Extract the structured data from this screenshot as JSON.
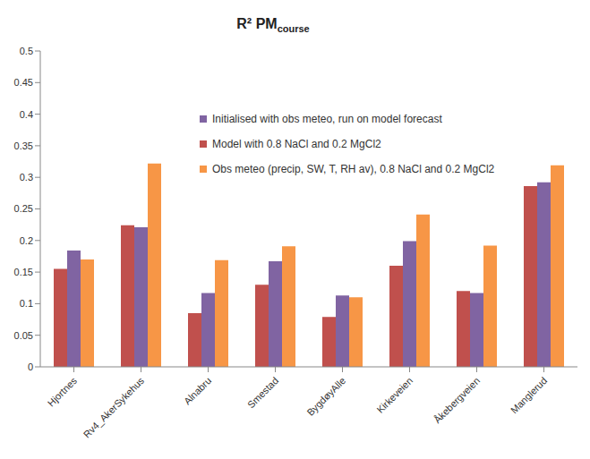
{
  "chart_data": {
    "type": "bar",
    "title": "R² PM",
    "title_subscript": "course",
    "categories": [
      "Hjortnes",
      "Rv4_AkerSykehus",
      "Alnabru",
      "Smestad",
      "BygdøyAlle",
      "Kirkeveien",
      "Åkebergveien",
      "Manglerud"
    ],
    "series": [
      {
        "name": "Model with 0.8 NaCl and 0.2 MgCl2",
        "color": "#C0504D",
        "values": [
          0.155,
          0.224,
          0.085,
          0.13,
          0.079,
          0.16,
          0.12,
          0.286
        ]
      },
      {
        "name": "Initialised with obs meteo, run on model forecast",
        "color": "#8064A2",
        "values": [
          0.184,
          0.221,
          0.117,
          0.167,
          0.113,
          0.199,
          0.117,
          0.292
        ]
      },
      {
        "name": "Obs meteo (precip, SW, T, RH av), 0.8 NaCl and 0.2 MgCl2",
        "color": "#F79646",
        "values": [
          0.17,
          0.322,
          0.169,
          0.191,
          0.11,
          0.241,
          0.192,
          0.319
        ]
      }
    ],
    "ylim": [
      0,
      0.5
    ],
    "yticks": [
      0,
      0.05,
      0.1,
      0.15,
      0.2,
      0.25,
      0.3,
      0.35,
      0.4,
      0.45,
      0.5
    ],
    "grid": false,
    "legend": "top"
  }
}
